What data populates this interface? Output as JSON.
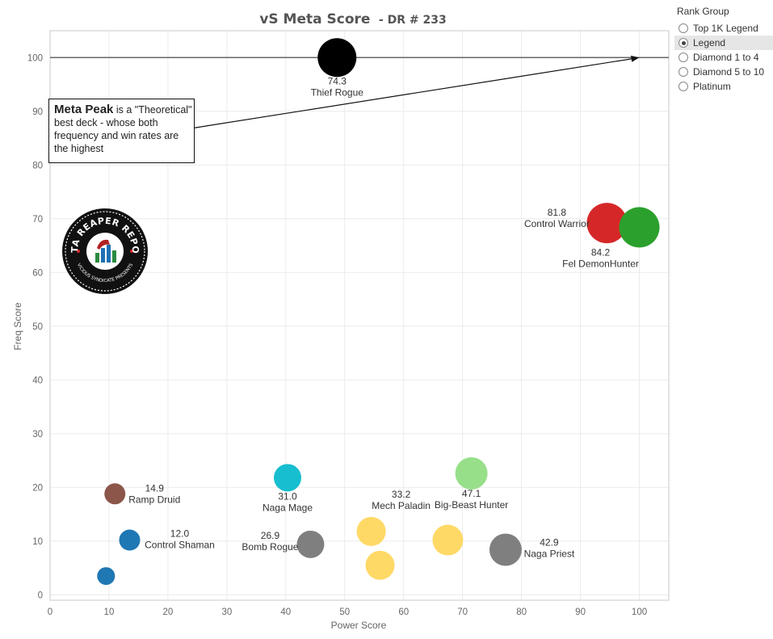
{
  "title": "vS Meta Score",
  "subtitle": "- DR # 233",
  "legend": {
    "title": "Rank Group",
    "items": [
      "Top 1K Legend",
      "Legend",
      "Diamond 1 to 4",
      "Diamond 5 to 10",
      "Platinum"
    ],
    "selected": "Legend"
  },
  "callout": {
    "bold": "Meta Peak",
    "text": "is a \"Theoretical\" best deck - whose both frequency and win rates are the highest"
  },
  "logo": {
    "text": "DATA REAPER REPORT",
    "subtext": "VICIOUS SYNDICATE PRESENTS"
  },
  "chart_data": {
    "type": "scatter",
    "title": "vS Meta Score - DR # 233",
    "xlabel": "Power Score",
    "ylabel": "Freq Score",
    "xlim": [
      0,
      105
    ],
    "ylim": [
      -1,
      105
    ],
    "xticks": [
      0,
      10,
      20,
      30,
      40,
      50,
      60,
      70,
      80,
      90,
      100
    ],
    "yticks": [
      0,
      10,
      20,
      30,
      40,
      50,
      60,
      70,
      80,
      90,
      100
    ],
    "grid": true,
    "reference_line": {
      "y": 100
    },
    "points": [
      {
        "name": "Thief Rogue",
        "score": "74.3",
        "x": 48.7,
        "y": 100,
        "color": "#000000",
        "size": 24
      },
      {
        "name": "Control Warrior",
        "score": "81.8",
        "x": 94.5,
        "y": 69.2,
        "color": "#d62728",
        "size": 25
      },
      {
        "name": "Fel DemonHunter",
        "score": "84.2",
        "x": 100,
        "y": 68.4,
        "color": "#2ca02c",
        "size": 25
      },
      {
        "name": "Ramp Druid",
        "score": "14.9",
        "x": 11,
        "y": 18.8,
        "color": "#8c564b",
        "size": 13
      },
      {
        "name": "Control Shaman",
        "score": "12.0",
        "x": 13.5,
        "y": 10.2,
        "color": "#1f77b4",
        "size": 13
      },
      {
        "name": "",
        "score": "",
        "x": 9.5,
        "y": 3.5,
        "color": "#1f77b4",
        "size": 11
      },
      {
        "name": "Naga Mage",
        "score": "31.0",
        "x": 40.3,
        "y": 21.8,
        "color": "#17becf",
        "size": 17
      },
      {
        "name": "Bomb Rogue",
        "score": "26.9",
        "x": 44.2,
        "y": 9.4,
        "color": "#7f7f7f",
        "size": 17
      },
      {
        "name": "Mech Paladin",
        "score": "33.2",
        "x": 54.5,
        "y": 11.8,
        "color": "#ffd966",
        "size": 18
      },
      {
        "name": "",
        "score": "",
        "x": 56,
        "y": 5.5,
        "color": "#ffd966",
        "size": 18
      },
      {
        "name": "",
        "score": "",
        "x": 67.5,
        "y": 10.2,
        "color": "#ffd966",
        "size": 19
      },
      {
        "name": "Big-Beast Hunter",
        "score": "47.1",
        "x": 71.5,
        "y": 22.6,
        "color": "#98df8a",
        "size": 20
      },
      {
        "name": "Naga Priest",
        "score": "42.9",
        "x": 77.3,
        "y": 8.4,
        "color": "#7f7f7f",
        "size": 20
      }
    ]
  }
}
